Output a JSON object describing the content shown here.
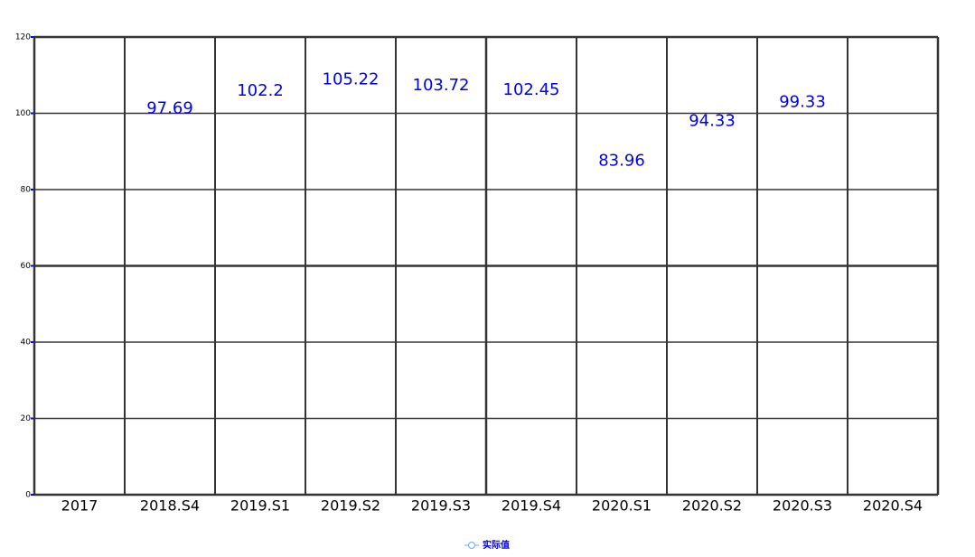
{
  "chart_data": {
    "type": "line",
    "categories": [
      "2017",
      "2018.S4",
      "2019.S1",
      "2019.S2",
      "2019.S3",
      "2019.S4",
      "2020.S1",
      "2020.S2",
      "2020.S3",
      "2020.S4"
    ],
    "series": [
      {
        "name": "实际值",
        "color": "#0000ee",
        "values": [
          null,
          97.69,
          102.2,
          105.22,
          103.72,
          102.45,
          83.96,
          94.33,
          99.33,
          null
        ]
      }
    ],
    "ylim": [
      0,
      120
    ],
    "yticks": [
      0,
      20,
      40,
      60,
      80,
      100,
      120
    ],
    "grid": true
  }
}
